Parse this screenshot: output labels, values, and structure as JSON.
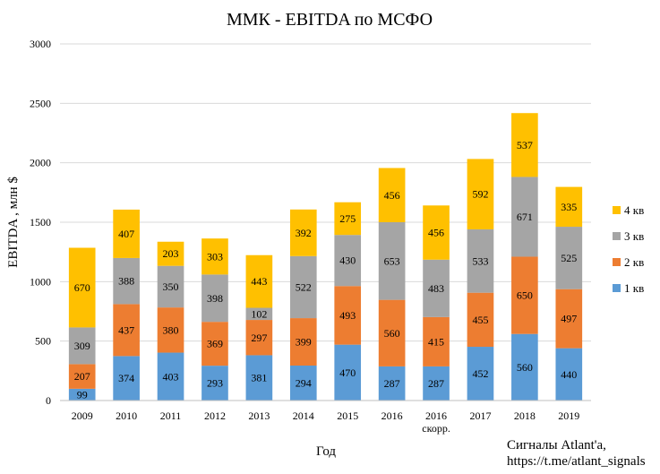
{
  "chart_data": {
    "type": "bar",
    "stacked": true,
    "title": "ММК - EBITDA по МСФО",
    "xlabel": "Год",
    "ylabel": "EBITDA , млн $",
    "ylim": [
      0,
      3000
    ],
    "yticks": [
      0,
      500,
      1000,
      1500,
      2000,
      2500,
      3000
    ],
    "grid": true,
    "legend_position": "right",
    "categories": [
      "2009",
      "2010",
      "2011",
      "2012",
      "2013",
      "2014",
      "2015",
      "2016",
      "2016\nскорр.",
      "2017",
      "2018",
      "2019"
    ],
    "series": [
      {
        "name": "1 кв",
        "color": "#5b9bd5",
        "values": [
          99,
          374,
          403,
          293,
          381,
          294,
          470,
          287,
          287,
          452,
          560,
          440
        ]
      },
      {
        "name": "2 кв",
        "color": "#ed7d31",
        "values": [
          207,
          437,
          380,
          369,
          297,
          399,
          493,
          560,
          415,
          455,
          650,
          497
        ]
      },
      {
        "name": "3 кв",
        "color": "#a5a5a5",
        "values": [
          309,
          388,
          350,
          398,
          102,
          522,
          430,
          653,
          483,
          533,
          671,
          525
        ]
      },
      {
        "name": "4 кв",
        "color": "#ffc000",
        "values": [
          670,
          407,
          203,
          303,
          443,
          392,
          275,
          456,
          456,
          592,
          537,
          335
        ]
      }
    ]
  },
  "credit": {
    "line1": "Сигналы Atlant'a,",
    "line2": "https://t.me/atlant_signals"
  }
}
